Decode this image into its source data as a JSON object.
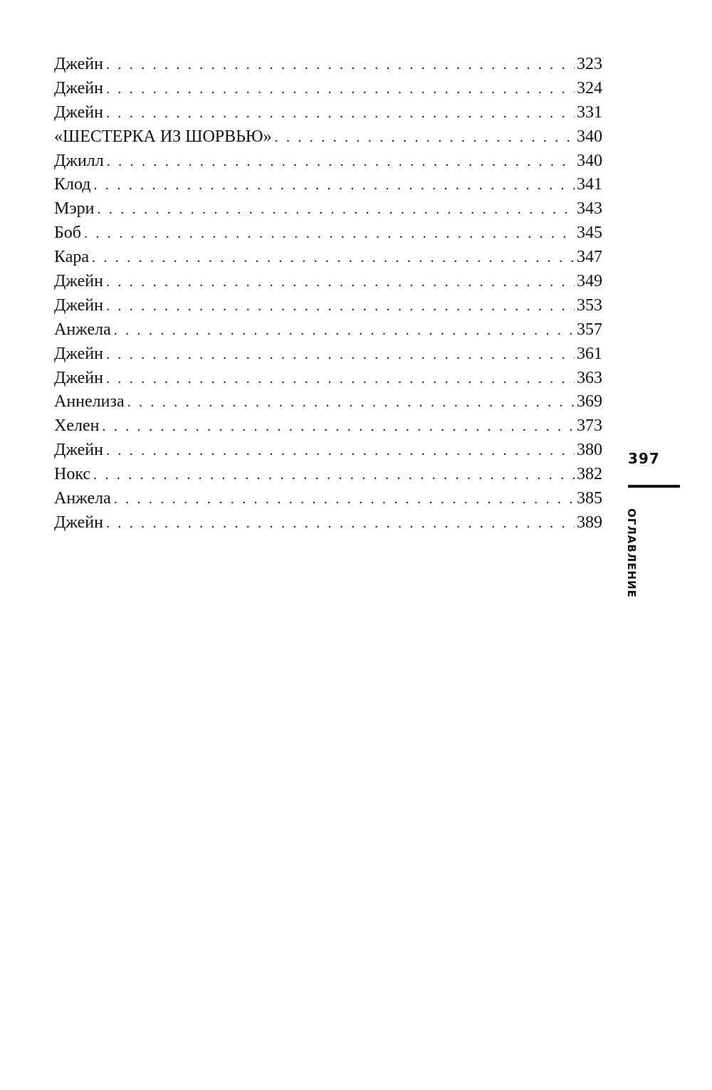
{
  "toc": [
    {
      "title": "Джейн",
      "page": "323"
    },
    {
      "title": "Джейн",
      "page": "324"
    },
    {
      "title": "Джейн",
      "page": "331"
    },
    {
      "title": "«ШЕСТЕРКА ИЗ ШОРВЬЮ»",
      "page": "340"
    },
    {
      "title": "Джилл",
      "page": "340"
    },
    {
      "title": "Клод",
      "page": "341"
    },
    {
      "title": "Мэри",
      "page": "343"
    },
    {
      "title": "Боб",
      "page": "345"
    },
    {
      "title": "Кара",
      "page": "347"
    },
    {
      "title": "Джейн",
      "page": "349"
    },
    {
      "title": "Джейн",
      "page": "353"
    },
    {
      "title": "Анжела",
      "page": "357"
    },
    {
      "title": "Джейн",
      "page": "361"
    },
    {
      "title": "Джейн",
      "page": "363"
    },
    {
      "title": "Аннелиза",
      "page": "369"
    },
    {
      "title": "Хелен",
      "page": "373"
    },
    {
      "title": "Джейн",
      "page": "380"
    },
    {
      "title": "Нокс",
      "page": "382"
    },
    {
      "title": "Анжела",
      "page": "385"
    },
    {
      "title": "Джейн",
      "page": "389"
    }
  ],
  "page_number": "397",
  "running_head": "ОГЛАВЛЕНИЕ"
}
